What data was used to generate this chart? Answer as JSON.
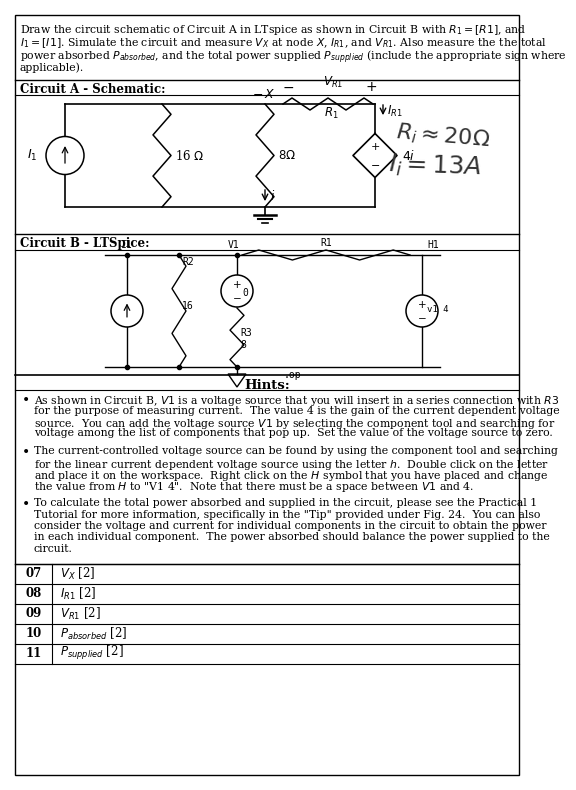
{
  "bg_color": "#ffffff",
  "top_text_lines": [
    "Draw the circuit schematic of Circuit A in LTspice as shown in Circuit B with $R_1 = [R1]$, and",
    "$I_1 = [I1]$. Simulate the circuit and measure $V_X$ at node $X$, $I_{R1}$, and $V_{R1}$. Also measure the the total",
    "power absorbed $P_{absorbed}$, and the total power supplied $P_{supplied}$ (include the appropriate sign where",
    "applicable)."
  ],
  "section_a_label": "Circuit A - Schematic:",
  "section_b_label": "Circuit B - LTSpice:",
  "hints_label": "Hints:",
  "hint1_parts": [
    {
      "text": "As shown in Circuit B, ",
      "style": "normal"
    },
    {
      "text": "V1",
      "style": "italic"
    },
    {
      "text": " is a voltage source that you will insert in a series connection with ",
      "style": "normal"
    },
    {
      "text": "R3",
      "style": "italic"
    },
    {
      "text": " for the purpose of measuring current.  The value 4 is the gain of the current dependent voltage source.  You can add the voltage source ",
      "style": "normal"
    },
    {
      "text": "V1",
      "style": "italic"
    },
    {
      "text": " by selecting the ",
      "style": "normal"
    },
    {
      "text": "component",
      "style": "italic"
    },
    {
      "text": " tool and searching for ",
      "style": "normal"
    },
    {
      "text": "voltage",
      "style": "italic"
    },
    {
      "text": " among the list of components that pop up.  Set the value of the voltage source to zero.",
      "style": "normal"
    }
  ],
  "hint1_text": "As shown in Circuit B, V1 is a voltage source that you will insert in a series connection with R3\n    for the purpose of measuring current.  The value 4 is the gain of the current dependent voltage\n    source.  You can add the voltage source V1 by selecting the component tool and searching for\n    voltage among the list of components that pop up.  Set the value of the voltage source to zero.",
  "hint2_text": "The current-controlled voltage source can be found by using the component tool and searching\n    for the linear current dependent voltage source using the letter h.  Double click on the letter\n    and place it on the workspace.  Right click on the H symbol that you have placed and change\n    the value from H to \"V1 4\".  Note that there must be a space between V1 and 4.",
  "hint3_text": "To calculate the total power absorbed and supplied in the circuit, please see the Practical 1\n    Tutorial for more information, specifically in the \"Tip\" provided under Fig. 24.  You can also\n    consider the voltage and current for individual components in the circuit to obtain the power\n    in each individual component.  The power absorbed should balance the power supplied to the\n    circuit.",
  "table_rows": [
    [
      "07",
      "$V_X$ [2]"
    ],
    [
      "08",
      "$I_{R1}$ [2]"
    ],
    [
      "09",
      "$V_{R1}$ [2]"
    ],
    [
      "10",
      "$P_{absorbed}$ [2]"
    ],
    [
      "11",
      "$P_{supplied}$ [2]"
    ]
  ]
}
